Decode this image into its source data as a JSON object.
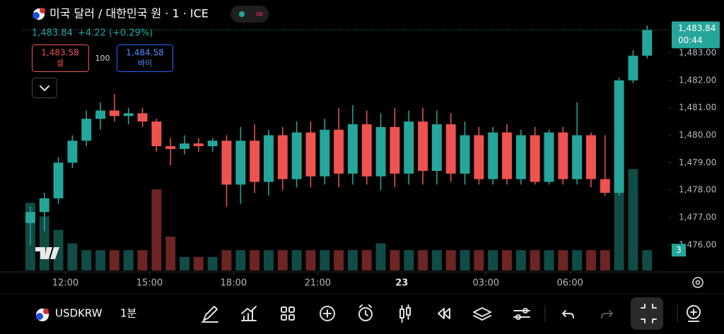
{
  "header": {
    "title": "미국 달러 / 대한민국 원 · 1 · ICE",
    "price": "1,483.84",
    "change": "+4.22 (+0.29%)"
  },
  "order": {
    "sell_price": "1,483.58",
    "sell_label": "셀",
    "quantity": "100",
    "buy_price": "1,484.58",
    "buy_label": "바이"
  },
  "price_tag": {
    "price": "1,483.84",
    "countdown": "00:44"
  },
  "volume_tag": "3",
  "toolbar": {
    "symbol": "USDKRW",
    "interval": "1분"
  },
  "chart_data": {
    "type": "candlestick",
    "up_color": "#26a69a",
    "down_color": "#ef5350",
    "x": [
      10.75,
      11.25,
      11.75,
      12.25,
      12.75,
      13.25,
      13.75,
      14.25,
      14.75,
      15.25,
      15.75,
      16.25,
      16.75,
      17.25,
      17.75,
      18.25,
      18.75,
      19.25,
      19.75,
      20.25,
      20.75,
      21.25,
      21.75,
      22.25,
      22.75,
      23.25,
      23.75,
      24.25,
      24.75,
      25.25,
      25.75,
      26.25,
      26.75,
      27.25,
      27.75,
      28.25,
      28.75,
      29.25,
      29.75,
      30.25,
      30.75,
      31.25,
      31.75,
      32.25,
      32.75
    ],
    "open": [
      1476.8,
      1477.2,
      1477.7,
      1479.0,
      1479.8,
      1480.6,
      1480.9,
      1480.7,
      1480.8,
      1480.5,
      1479.6,
      1479.5,
      1479.7,
      1479.6,
      1479.8,
      1478.2,
      1479.8,
      1478.3,
      1480.0,
      1478.4,
      1480.1,
      1478.5,
      1480.2,
      1478.6,
      1480.4,
      1478.5,
      1480.3,
      1478.6,
      1480.5,
      1478.7,
      1480.4,
      1478.6,
      1480.0,
      1478.4,
      1480.1,
      1478.4,
      1480.0,
      1478.3,
      1480.1,
      1478.4,
      1480.0,
      1478.4,
      1477.9,
      1482.0,
      1482.9
    ],
    "high": [
      1477.4,
      1477.9,
      1479.2,
      1480.0,
      1480.9,
      1481.2,
      1481.5,
      1481.0,
      1481.0,
      1480.6,
      1479.9,
      1480.0,
      1479.9,
      1479.9,
      1480.0,
      1480.3,
      1480.4,
      1480.2,
      1480.3,
      1480.5,
      1480.5,
      1480.6,
      1481.0,
      1481.1,
      1480.9,
      1480.8,
      1481.0,
      1480.9,
      1481.0,
      1480.9,
      1480.8,
      1480.5,
      1480.3,
      1480.3,
      1480.4,
      1480.2,
      1480.3,
      1480.2,
      1480.3,
      1481.2,
      1480.1,
      1480.0,
      1482.1,
      1483.1,
      1484.0
    ],
    "low": [
      1476.0,
      1476.5,
      1477.5,
      1478.8,
      1479.6,
      1480.2,
      1480.5,
      1480.4,
      1480.3,
      1479.4,
      1478.9,
      1479.3,
      1479.4,
      1479.4,
      1477.4,
      1477.5,
      1477.9,
      1477.8,
      1478.0,
      1478.1,
      1478.1,
      1478.2,
      1478.1,
      1478.2,
      1478.2,
      1478.0,
      1478.1,
      1478.2,
      1478.2,
      1478.2,
      1478.3,
      1478.2,
      1478.2,
      1478.2,
      1478.2,
      1478.2,
      1478.2,
      1478.2,
      1478.2,
      1478.2,
      1478.1,
      1477.8,
      1477.8,
      1481.9,
      1482.8
    ],
    "close": [
      1477.2,
      1477.7,
      1479.0,
      1479.8,
      1480.6,
      1480.9,
      1480.7,
      1480.8,
      1480.5,
      1479.6,
      1479.5,
      1479.7,
      1479.6,
      1479.8,
      1478.2,
      1479.8,
      1478.3,
      1480.0,
      1478.4,
      1480.1,
      1478.5,
      1480.2,
      1478.6,
      1480.4,
      1478.5,
      1480.3,
      1478.6,
      1480.5,
      1478.7,
      1480.4,
      1478.6,
      1480.0,
      1478.4,
      1480.1,
      1478.4,
      1480.0,
      1478.3,
      1480.1,
      1478.4,
      1480.0,
      1478.4,
      1477.9,
      1482.0,
      1482.9,
      1483.84
    ],
    "volume": [
      10,
      8,
      6,
      4,
      3,
      3,
      3,
      3,
      3,
      12,
      5,
      2,
      2,
      2,
      3,
      3,
      3,
      3,
      3,
      3,
      3,
      3,
      3,
      3,
      3,
      4,
      3,
      3,
      3,
      3,
      3,
      3,
      3,
      3,
      3,
      3,
      3,
      3,
      3,
      3,
      3,
      3,
      18,
      15,
      3
    ],
    "volume_ylim": [
      0,
      40
    ],
    "xlim": [
      10.5,
      33.5
    ],
    "xticks": [
      {
        "value": 12,
        "label": "12:00"
      },
      {
        "value": 15,
        "label": "15:00"
      },
      {
        "value": 18,
        "label": "18:00"
      },
      {
        "value": 21,
        "label": "21:00"
      },
      {
        "value": 24,
        "label": "23"
      },
      {
        "value": 27,
        "label": "03:00"
      },
      {
        "value": 30,
        "label": "06:00"
      }
    ],
    "ylim": [
      1475.07,
      1484.93
    ],
    "yticks": [
      {
        "value": 1476,
        "label": "1,476.00"
      },
      {
        "value": 1477,
        "label": "1,477.00"
      },
      {
        "value": 1478,
        "label": "1,478.00"
      },
      {
        "value": 1479,
        "label": "1,479.00"
      },
      {
        "value": 1480,
        "label": "1,480.00"
      },
      {
        "value": 1481,
        "label": "1,481.00"
      },
      {
        "value": 1482,
        "label": "1,482.00"
      },
      {
        "value": 1483,
        "label": "1,483.00"
      }
    ],
    "grid": false
  }
}
